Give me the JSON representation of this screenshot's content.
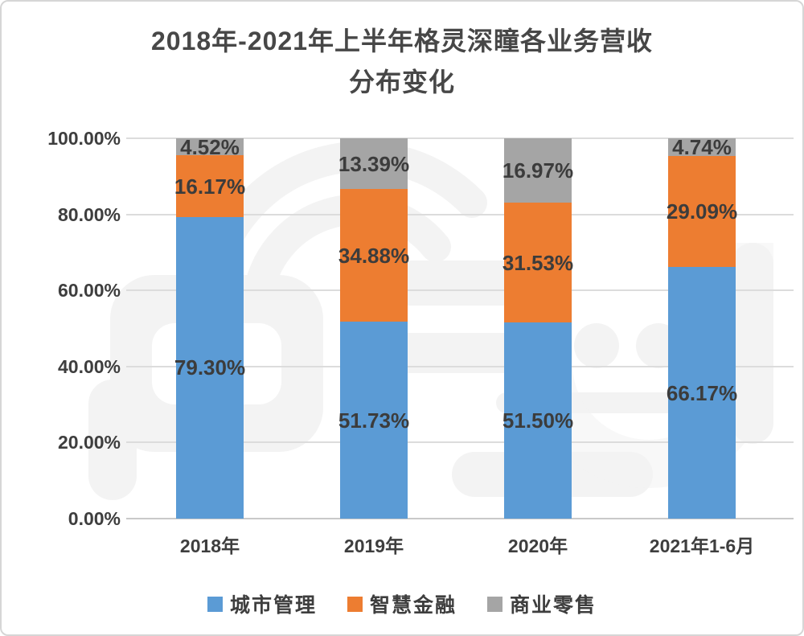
{
  "chart_data": {
    "type": "bar",
    "variant": "stacked-100-percent",
    "title": "2018年-2021年上半年格灵深瞳各业务营收分布变化",
    "title_lines": [
      "2018年-2021年上半年格灵深瞳各业务营收",
      "分布变化"
    ],
    "categories": [
      "2018年",
      "2019年",
      "2020年",
      "2021年1-6月"
    ],
    "series": [
      {
        "name": "城市管理",
        "color": "#5B9BD5",
        "values": [
          79.3,
          51.73,
          51.5,
          66.17
        ],
        "labels": [
          "79.30%",
          "51.73%",
          "51.50%",
          "66.17%"
        ]
      },
      {
        "name": "智慧金融",
        "color": "#ED7D31",
        "values": [
          16.17,
          34.88,
          31.53,
          29.09
        ],
        "labels": [
          "16.17%",
          "34.88%",
          "31.53%",
          "29.09%"
        ]
      },
      {
        "name": "商业零售",
        "color": "#A5A5A5",
        "values": [
          4.52,
          13.39,
          16.97,
          4.74
        ],
        "labels": [
          "4.52%",
          "13.39%",
          "16.97%",
          "4.74%"
        ]
      }
    ],
    "y_axis": {
      "min": 0,
      "max": 100,
      "step": 20,
      "tick_labels": [
        "0.00%",
        "20.00%",
        "40.00%",
        "60.00%",
        "80.00%",
        "100.00%"
      ]
    },
    "grid": true,
    "legend_position": "bottom",
    "legend": [
      "城市管理",
      "智慧金融",
      "商业零售"
    ]
  },
  "watermark": {
    "name": "zhidongxi-logo-watermark",
    "color": "#f3f3f3"
  },
  "colors": {
    "background": "#ffffff",
    "border": "#d6d6d6",
    "text": "#3e3e3e",
    "title_text": "#474747",
    "gridline": "#dcdcdc",
    "axis_line": "#c9c9c9"
  }
}
